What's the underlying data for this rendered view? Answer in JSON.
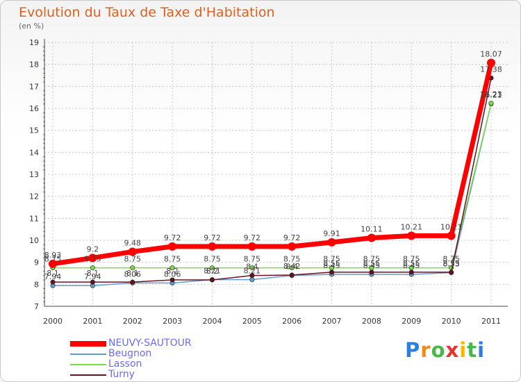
{
  "colors": {
    "title": "#e06020",
    "axis_label": "#666666",
    "legend_text": "#6a6aff",
    "grid": "#c8c8c8",
    "series": [
      "#ff0000",
      "#6699cc",
      "#77dd44",
      "#661122"
    ]
  },
  "logo": {
    "letters": [
      "P",
      "r",
      "o",
      "x",
      "i",
      "t",
      "i"
    ],
    "colors": [
      "#2a7de1",
      "#f08a1c",
      "#49b847",
      "#e8322e",
      "#f5b800",
      "#49b847",
      "#2a7de1"
    ]
  },
  "chart_data": {
    "type": "line",
    "title": "Evolution du Taux de Taxe d'Habitation",
    "subtitle": "(en %)",
    "xlabel": "",
    "ylabel": "",
    "ylim": [
      7,
      19
    ],
    "yticks": [
      "7",
      "8",
      "9",
      "10",
      "11",
      "12",
      "13",
      "14",
      "15",
      "16",
      "17",
      "18",
      "19"
    ],
    "grid": true,
    "categories": [
      "2000",
      "2001",
      "2002",
      "2003",
      "2004",
      "2005",
      "2006",
      "2007",
      "2008",
      "2009",
      "2010",
      "2011"
    ],
    "series": [
      {
        "name": "NEUVY-SAUTOUR",
        "values": [
          8.93,
          9.2,
          9.48,
          9.72,
          9.72,
          9.72,
          9.72,
          9.91,
          10.11,
          10.21,
          10.21,
          18.07
        ],
        "labels": [
          "8.93",
          "9.2",
          "9.48",
          "9.72",
          "9.72",
          "9.72",
          "9.72",
          "9.91",
          "10.11",
          "10.21",
          "10.21",
          "18.07"
        ]
      },
      {
        "name": "Beugnon",
        "values": [
          7.94,
          7.94,
          8.06,
          8.06,
          8.21,
          8.21,
          8.4,
          8.45,
          8.45,
          8.45,
          8.53,
          16.21
        ],
        "labels": [
          "7.94",
          "7.94",
          "8.06",
          "8.06",
          "8.21",
          "8.21",
          "8.4",
          "8.45",
          "8.45",
          "8.45",
          "8.53",
          "16.21"
        ]
      },
      {
        "name": "Lasson",
        "values": [
          8.75,
          8.75,
          8.75,
          8.75,
          8.75,
          8.75,
          8.75,
          8.75,
          8.75,
          8.75,
          8.75,
          16.23
        ],
        "labels": [
          "8.75",
          "8.75",
          "8.75",
          "8.75",
          "8.75",
          "8.75",
          "8.75",
          "8.75",
          "8.75",
          "8.75",
          "8.75",
          "16.23"
        ]
      },
      {
        "name": "Turny",
        "values": [
          8.1,
          8.1,
          8.1,
          8.2,
          8.2,
          8.4,
          8.42,
          8.55,
          8.55,
          8.55,
          8.55,
          17.38
        ],
        "labels": [
          "8.1",
          "8.1",
          "8.1",
          "8.2",
          "8.2",
          "8.4",
          "8.42",
          "8.55",
          "8.55",
          "8.55",
          "8.55",
          "17.38"
        ]
      }
    ]
  }
}
